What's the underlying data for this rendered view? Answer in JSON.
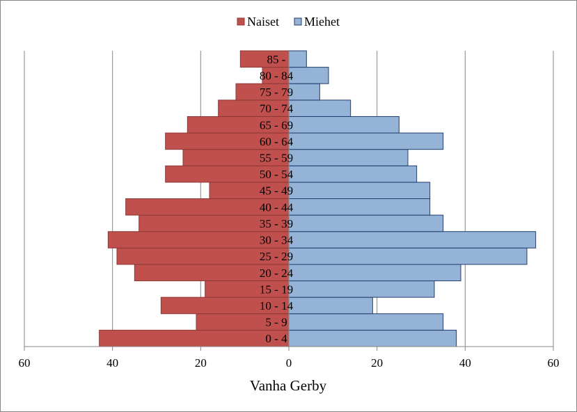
{
  "chart_data": {
    "type": "bar",
    "orientation": "horizontal",
    "subtype": "population-pyramid",
    "categories": [
      "0 - 4",
      "5 - 9",
      "10 - 14",
      "15 - 19",
      "20 - 24",
      "25 - 29",
      "30 - 34",
      "35 - 39",
      "40 - 44",
      "45 - 49",
      "50 - 54",
      "55 - 59",
      "60 - 64",
      "65 - 69",
      "70 - 74",
      "75 - 79",
      "80 - 84",
      "85 -"
    ],
    "series": [
      {
        "name": "Naiset",
        "color": "#C0504D",
        "side": "left",
        "values": [
          43,
          21,
          29,
          19,
          35,
          39,
          41,
          34,
          37,
          18,
          28,
          24,
          28,
          23,
          16,
          12,
          6,
          11
        ]
      },
      {
        "name": "Miehet",
        "color": "#95B3D7",
        "side": "right",
        "values": [
          38,
          35,
          19,
          33,
          39,
          54,
          56,
          35,
          32,
          32,
          29,
          27,
          35,
          25,
          14,
          7,
          9,
          4
        ]
      }
    ],
    "xlabel": "Vanha Gerby",
    "xlim": [
      -60,
      60
    ],
    "x_ticks": [
      -60,
      -40,
      -20,
      0,
      20,
      40,
      60
    ],
    "x_tick_labels": [
      "60",
      "40",
      "20",
      "0",
      "20",
      "40",
      "60"
    ],
    "grid": "vertical",
    "legend_position": "top-center"
  }
}
